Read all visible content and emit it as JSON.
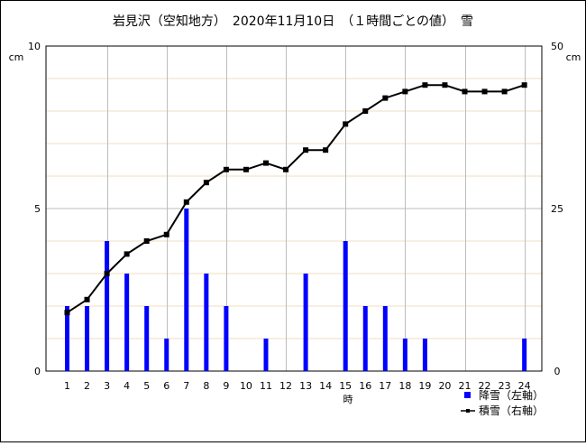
{
  "chart_data": {
    "type": "bar+line",
    "title": "岩見沢（空知地方）　2020年11月10日　（１時間ごとの値）　雪",
    "xlabel": "時",
    "left_unit": "cm",
    "right_unit": "cm",
    "categories": [
      "1",
      "2",
      "3",
      "4",
      "5",
      "6",
      "7",
      "8",
      "9",
      "10",
      "11",
      "12",
      "13",
      "14",
      "15",
      "16",
      "17",
      "18",
      "19",
      "20",
      "21",
      "22",
      "23",
      "24"
    ],
    "left_axis": {
      "ticks": [
        "0",
        "5",
        "10"
      ],
      "range": [
        0,
        10
      ]
    },
    "right_axis": {
      "ticks": [
        "0",
        "25",
        "50"
      ],
      "range": [
        0,
        50
      ]
    },
    "series": [
      {
        "name": "降雪（左軸）",
        "kind": "bar",
        "axis": "left",
        "color": "#0000ff",
        "values": [
          2,
          2,
          4,
          3,
          2,
          1,
          5,
          3,
          2,
          0,
          1,
          0,
          3,
          0,
          4,
          2,
          2,
          1,
          1,
          0,
          0,
          0,
          0,
          1
        ]
      },
      {
        "name": "積雪（右軸）",
        "kind": "line",
        "axis": "right",
        "color": "#000000",
        "values": [
          9,
          11,
          15,
          18,
          20,
          21,
          26,
          29,
          31,
          31,
          32,
          31,
          34,
          34,
          38,
          40,
          42,
          43,
          44,
          44,
          43,
          43,
          43,
          44
        ]
      }
    ],
    "grid": true,
    "legend_position": "bottom-right"
  }
}
